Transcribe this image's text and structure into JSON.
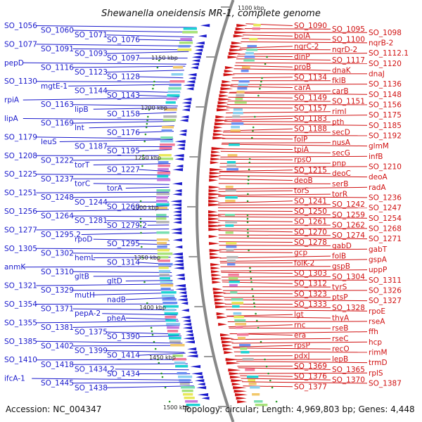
{
  "title": "Shewanella oneidensis MR-1, complete genome",
  "footer": {
    "accession": "Accession: NC_004347",
    "info": "Topology: circular; Length: 4,969,803 bp; Genes: 4,448"
  },
  "colors": {
    "left_strand": "#1a1acc",
    "right_strand": "#d01010",
    "backbone": "#888888",
    "scale": "#2a9a2a"
  },
  "scale_labels": [
    {
      "text": "1100 kbp",
      "side": "r"
    },
    {
      "text": "1150 kbp",
      "side": "l"
    },
    {
      "text": "1200 kbp",
      "side": "l"
    },
    {
      "text": "1250 kbp",
      "side": "l"
    },
    {
      "text": "1300 kbp",
      "side": "l"
    },
    {
      "text": "1350 kbp",
      "side": "l"
    },
    {
      "text": "1400 kbp",
      "side": "l"
    },
    {
      "text": "1450 kbp",
      "side": "l"
    },
    {
      "text": "1500 kbp",
      "side": "l"
    }
  ],
  "left_labels": [
    "SO_1056",
    "SO_1060",
    "SO_1071",
    "SO_1076",
    "SO_1077",
    "SO_1091",
    "SO_1093",
    "SO_1097",
    "pepD",
    "SO_1116",
    "SO_1123",
    "SO_1128",
    "SO_1130",
    "mgtE-1",
    "SO_1144",
    "SO_1143",
    "rpiA",
    "SO_1163",
    "lipB",
    "SO_1158",
    "lipA",
    "SO_1169",
    "lnt",
    "SO_1176",
    "SO_1179",
    "leuS",
    "SO_1187",
    "SO_1195",
    "SO_1208",
    "SO_1222",
    "torT",
    "SO_1227",
    "SO_1225",
    "SO_1237",
    "torC",
    "torA",
    "SO_1251",
    "SO_1248",
    "SO_1244",
    "SO_1260",
    "SO_1256",
    "SO_1264",
    "SO_1281",
    "SO_1279.2",
    "SO_1277",
    "SO_1295.2",
    "rpoD",
    "SO_1295",
    "SO_1305",
    "SO_1302",
    "hemL",
    "SO_1314",
    "anmK",
    "SO_1310",
    "gltB",
    "gltD",
    "SO_1321",
    "SO_1329",
    "mutH",
    "nadB",
    "SO_1354",
    "SO_1371",
    "pepA-2",
    "pheA",
    "SO_1355",
    "SO_1381",
    "SO_1375",
    "SO_1390",
    "SO_1385",
    "SO_1402",
    "SO_1399",
    "SO_1414",
    "SO_1410",
    "SO_1418",
    "SO_1434.2",
    "SO_1434",
    "ifcA-1",
    "SO_1445",
    "SO_1438"
  ],
  "right_labels": [
    "SO_1090",
    "SO_1095",
    "SO_1098",
    "bolA",
    "SO_1100",
    "nqrB-2",
    "nqrC-2",
    "nqrD-2",
    "SO_1112.1",
    "dinP",
    "SO_1117",
    "SO_1120",
    "proB",
    "dnaK",
    "dnaJ",
    "SO_1134",
    "fklB",
    "SO_1136",
    "carA",
    "carB",
    "SO_1148",
    "SO_1149",
    "SO_1151",
    "SO_1156",
    "SO_1157",
    "rimI",
    "SO_1175",
    "SO_1183",
    "pth",
    "SO_1185",
    "SO_1188",
    "secD",
    "SO_1192",
    "folP",
    "nusA",
    "glmM",
    "tpiA",
    "secG",
    "infB",
    "rpsO",
    "pnp",
    "SO_1210",
    "SO_1215",
    "deoC",
    "deoA",
    "deoB",
    "serB",
    "radA",
    "torS",
    "torR",
    "SO_1236",
    "SO_1241",
    "SO_1242",
    "SO_1247",
    "SO_1250",
    "SO_1259",
    "SO_1254",
    "SO_1261",
    "SO_1262",
    "SO_1268",
    "SO_1270",
    "SO_1274",
    "SO_1271",
    "SO_1278",
    "gabD",
    "gabT",
    "gcp",
    "folB",
    "gspA",
    "folK-2",
    "gspB",
    "uppP",
    "SO_1303",
    "SO_1304",
    "SO_1311",
    "SO_1312",
    "tyrS",
    "SO_1326",
    "SO_1323",
    "ptsP",
    "SO_1327",
    "SO_1333",
    "SO_1328",
    "rpoE",
    "lgt",
    "thyA",
    "rseA",
    "rnc",
    "rseB",
    "ffh",
    "era",
    "rseC",
    "hcp",
    "rpsP",
    "recO",
    "rimM",
    "pdxJ",
    "lepB",
    "trmD",
    "SO_1369",
    "SO_1365",
    "rplS",
    "SO_1376",
    "SO_1370",
    "SO_1387",
    "SO_1377"
  ]
}
